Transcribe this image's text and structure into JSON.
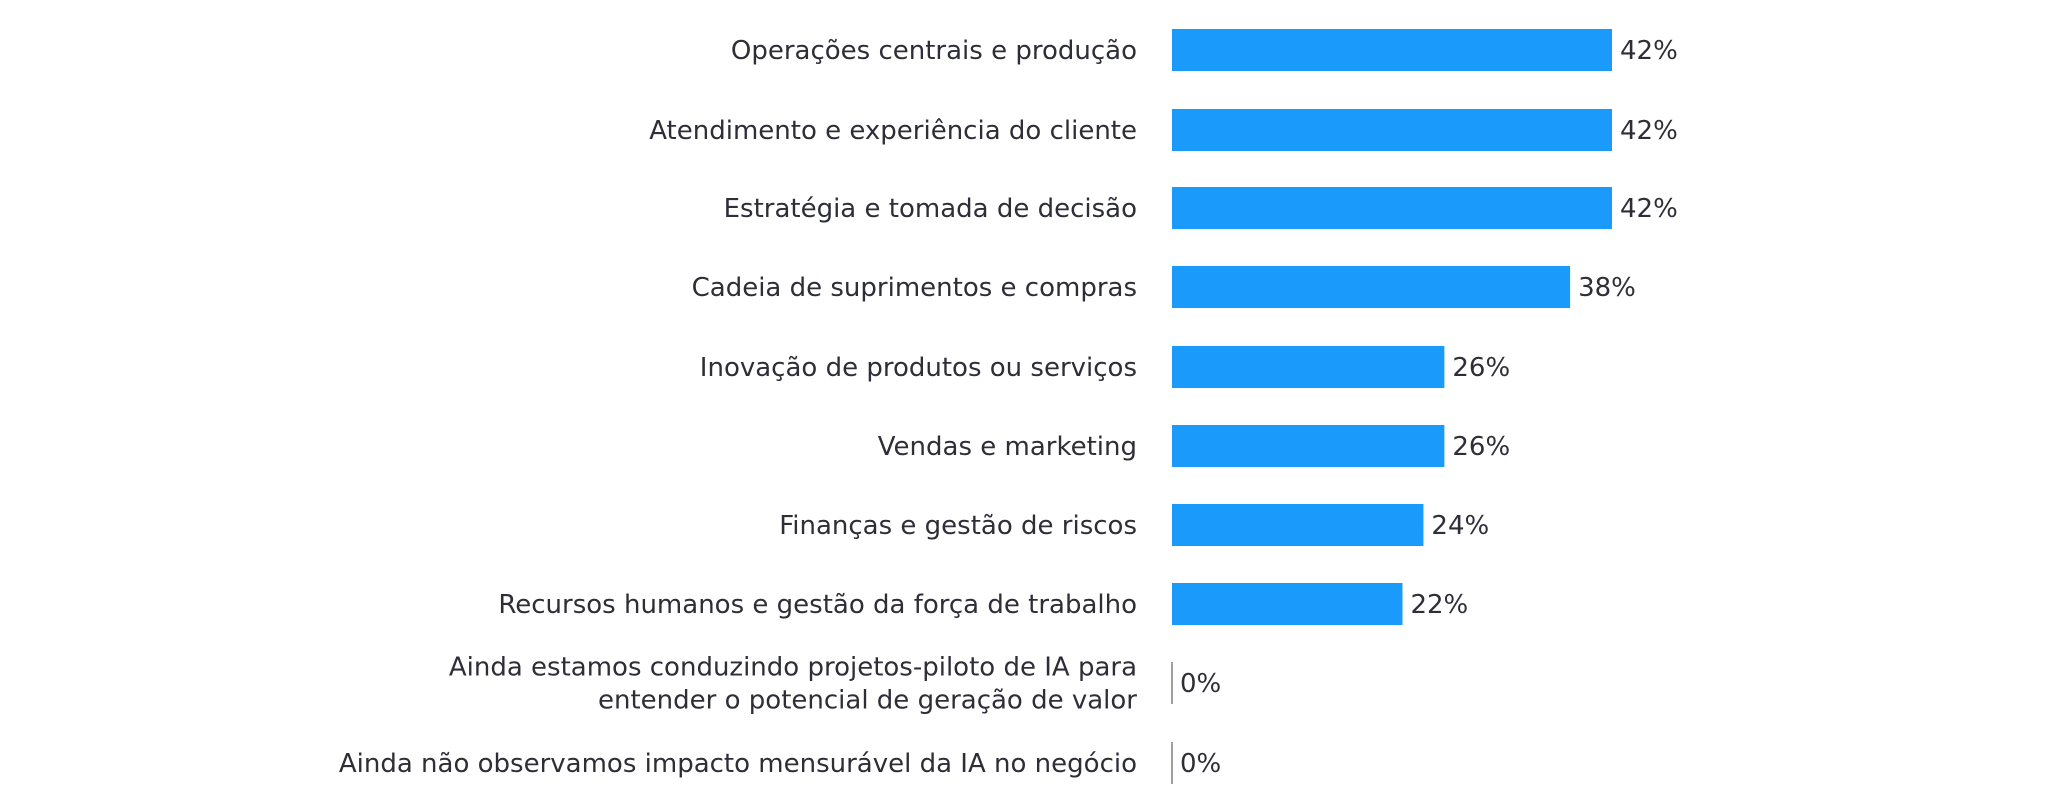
{
  "chart_data": {
    "type": "bar",
    "orientation": "horizontal",
    "categories": [
      [
        "Operações centrais e produção"
      ],
      [
        "Atendimento e experiência do cliente"
      ],
      [
        "Estratégia e tomada de decisão"
      ],
      [
        "Cadeia de suprimentos e compras"
      ],
      [
        "Inovação de produtos ou serviços"
      ],
      [
        "Vendas e marketing"
      ],
      [
        "Finanças e gestão de riscos"
      ],
      [
        "Recursos humanos e gestão da força de trabalho"
      ],
      [
        "Ainda estamos conduzindo projetos-piloto de IA para",
        "entender o potencial de geração de valor"
      ],
      [
        "Ainda não observamos impacto mensurável da IA no negócio"
      ]
    ],
    "values": [
      42,
      42,
      42,
      38,
      26,
      26,
      24,
      22,
      0,
      0
    ],
    "value_labels": [
      "42%",
      "42%",
      "42%",
      "38%",
      "26%",
      "26%",
      "24%",
      "22%",
      "0%",
      "0%"
    ],
    "xlim": [
      0,
      42
    ],
    "grid": false,
    "bar_color": "#1a9afa",
    "zero_tick_color": "#7f7f7f"
  }
}
